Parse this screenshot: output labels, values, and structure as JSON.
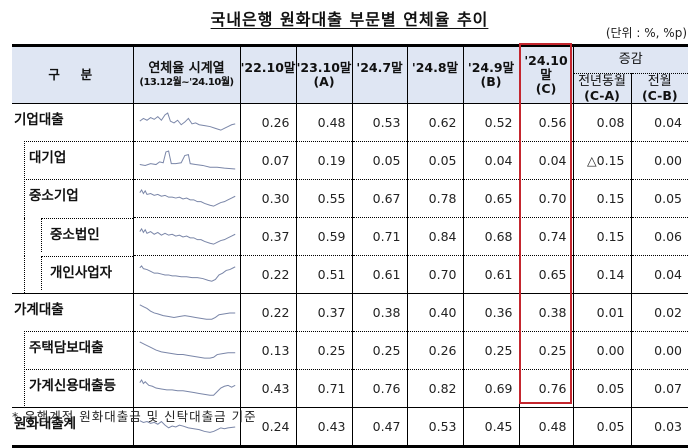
{
  "title": "국내은행 원화대출 부문별 연체율 추이",
  "unit": "(단위 : %, %p)",
  "header": {
    "category": "구  분",
    "series_label": "연체율 시계열",
    "series_range": "(13.12월~'24.10월)",
    "col_2210": "'22.10말",
    "col_2310": "'23.10말",
    "col_2310_tag": "(A)",
    "col_2407": "'24.7말",
    "col_2408": "'24.8말",
    "col_2409": "'24.9말",
    "col_2409_tag": "(B)",
    "col_2410": "'24.10말",
    "col_2410_tag": "(C)",
    "change": "증감",
    "yoy": "전년동월",
    "yoy_tag": "(C-A)",
    "mom": "전월",
    "mom_tag": "(C-B)"
  },
  "rows": [
    {
      "label": "기업대출",
      "level": 0,
      "v2210": "0.26",
      "v2310": "0.48",
      "v2407": "0.53",
      "v2408": "0.62",
      "v2409": "0.52",
      "v2410": "0.56",
      "yoy": "0.08",
      "mom": "0.04"
    },
    {
      "label": "대기업",
      "level": 1,
      "v2210": "0.07",
      "v2310": "0.19",
      "v2407": "0.05",
      "v2408": "0.05",
      "v2409": "0.04",
      "v2410": "0.04",
      "yoy": "△0.15",
      "mom": "0.00"
    },
    {
      "label": "중소기업",
      "level": 1,
      "v2210": "0.30",
      "v2310": "0.55",
      "v2407": "0.67",
      "v2408": "0.78",
      "v2409": "0.65",
      "v2410": "0.70",
      "yoy": "0.15",
      "mom": "0.05"
    },
    {
      "label": "중소법인",
      "level": 2,
      "v2210": "0.37",
      "v2310": "0.59",
      "v2407": "0.71",
      "v2408": "0.84",
      "v2409": "0.68",
      "v2410": "0.74",
      "yoy": "0.15",
      "mom": "0.06"
    },
    {
      "label": "개인사업자",
      "level": 2,
      "v2210": "0.22",
      "v2310": "0.51",
      "v2407": "0.61",
      "v2408": "0.70",
      "v2409": "0.61",
      "v2410": "0.65",
      "yoy": "0.14",
      "mom": "0.04"
    },
    {
      "label": "가계대출",
      "level": 0,
      "v2210": "0.22",
      "v2310": "0.37",
      "v2407": "0.38",
      "v2408": "0.40",
      "v2409": "0.36",
      "v2410": "0.38",
      "yoy": "0.01",
      "mom": "0.02"
    },
    {
      "label": "주택담보대출",
      "level": 1,
      "v2210": "0.13",
      "v2310": "0.25",
      "v2407": "0.25",
      "v2408": "0.26",
      "v2409": "0.25",
      "v2410": "0.25",
      "yoy": "0.00",
      "mom": "0.00"
    },
    {
      "label": "가계신용대출등",
      "level": 1,
      "v2210": "0.43",
      "v2310": "0.71",
      "v2407": "0.76",
      "v2408": "0.82",
      "v2409": "0.69",
      "v2410": "0.76",
      "yoy": "0.05",
      "mom": "0.07"
    },
    {
      "label": "원화대출계",
      "level": 0,
      "v2210": "0.24",
      "v2310": "0.43",
      "v2407": "0.47",
      "v2408": "0.53",
      "v2409": "0.45",
      "v2410": "0.48",
      "yoy": "0.05",
      "mom": "0.03"
    }
  ],
  "sparkline_color": "#7a86a8",
  "highlight_color": "#c4262e",
  "footnote": "* 은행계정 원화대출금 및 신탁대출금 기준"
}
